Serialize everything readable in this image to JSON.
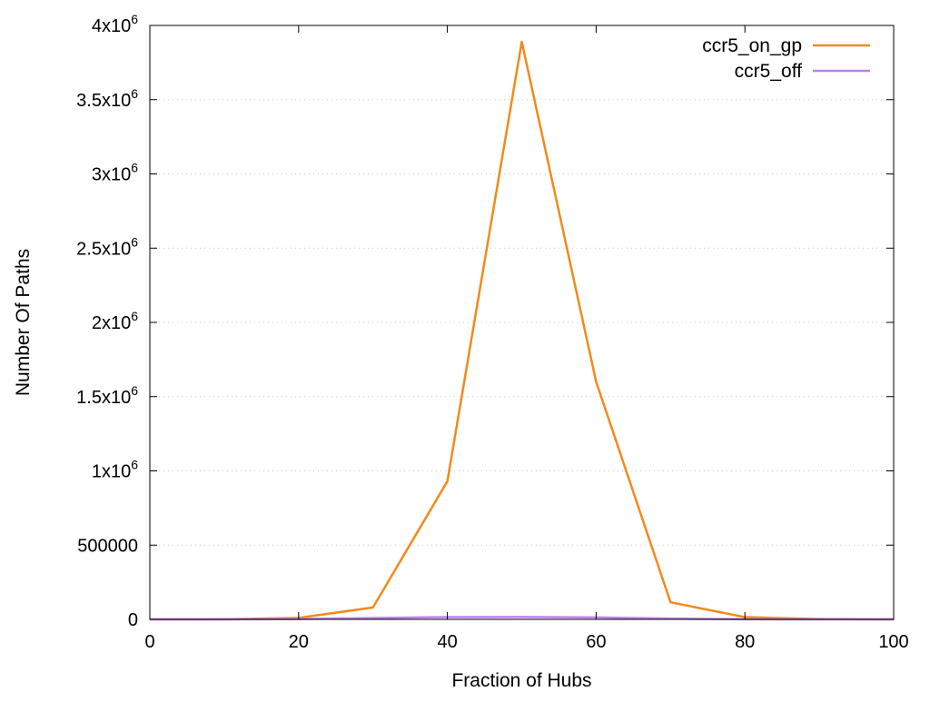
{
  "chart_data": {
    "type": "line",
    "title": "",
    "xlabel": "Fraction of Hubs",
    "ylabel": "Number Of Paths",
    "xlim": [
      0,
      100
    ],
    "ylim": [
      0,
      4000000
    ],
    "x_ticks": [
      {
        "value": 0,
        "label": "0"
      },
      {
        "value": 20,
        "label": "20"
      },
      {
        "value": 40,
        "label": "40"
      },
      {
        "value": 60,
        "label": "60"
      },
      {
        "value": 80,
        "label": "80"
      },
      {
        "value": 100,
        "label": "100"
      }
    ],
    "y_ticks": [
      {
        "value": 0,
        "mantissa": "0",
        "exponent": ""
      },
      {
        "value": 500000,
        "mantissa": "500000",
        "exponent": ""
      },
      {
        "value": 1000000,
        "mantissa": "1x10",
        "exponent": "6"
      },
      {
        "value": 1500000,
        "mantissa": "1.5x10",
        "exponent": "6"
      },
      {
        "value": 2000000,
        "mantissa": "2x10",
        "exponent": "6"
      },
      {
        "value": 2500000,
        "mantissa": "2.5x10",
        "exponent": "6"
      },
      {
        "value": 3000000,
        "mantissa": "3x10",
        "exponent": "6"
      },
      {
        "value": 3500000,
        "mantissa": "3.5x10",
        "exponent": "6"
      },
      {
        "value": 4000000,
        "mantissa": "4x10",
        "exponent": "6"
      }
    ],
    "grid": true,
    "legend_position": "top-right",
    "x": [
      0,
      10,
      20,
      30,
      40,
      50,
      60,
      70,
      80,
      90,
      100
    ],
    "series": [
      {
        "name": "ccr5_on_gp",
        "color": "#f28a1b",
        "values": [
          0,
          500,
          10000,
          80000,
          930000,
          3890000,
          1600000,
          115000,
          15000,
          2000,
          0
        ]
      },
      {
        "name": "ccr5_off",
        "color": "#c080f0",
        "values": [
          0,
          0,
          2000,
          9000,
          15000,
          16000,
          13000,
          5000,
          1000,
          0,
          0
        ]
      }
    ]
  }
}
